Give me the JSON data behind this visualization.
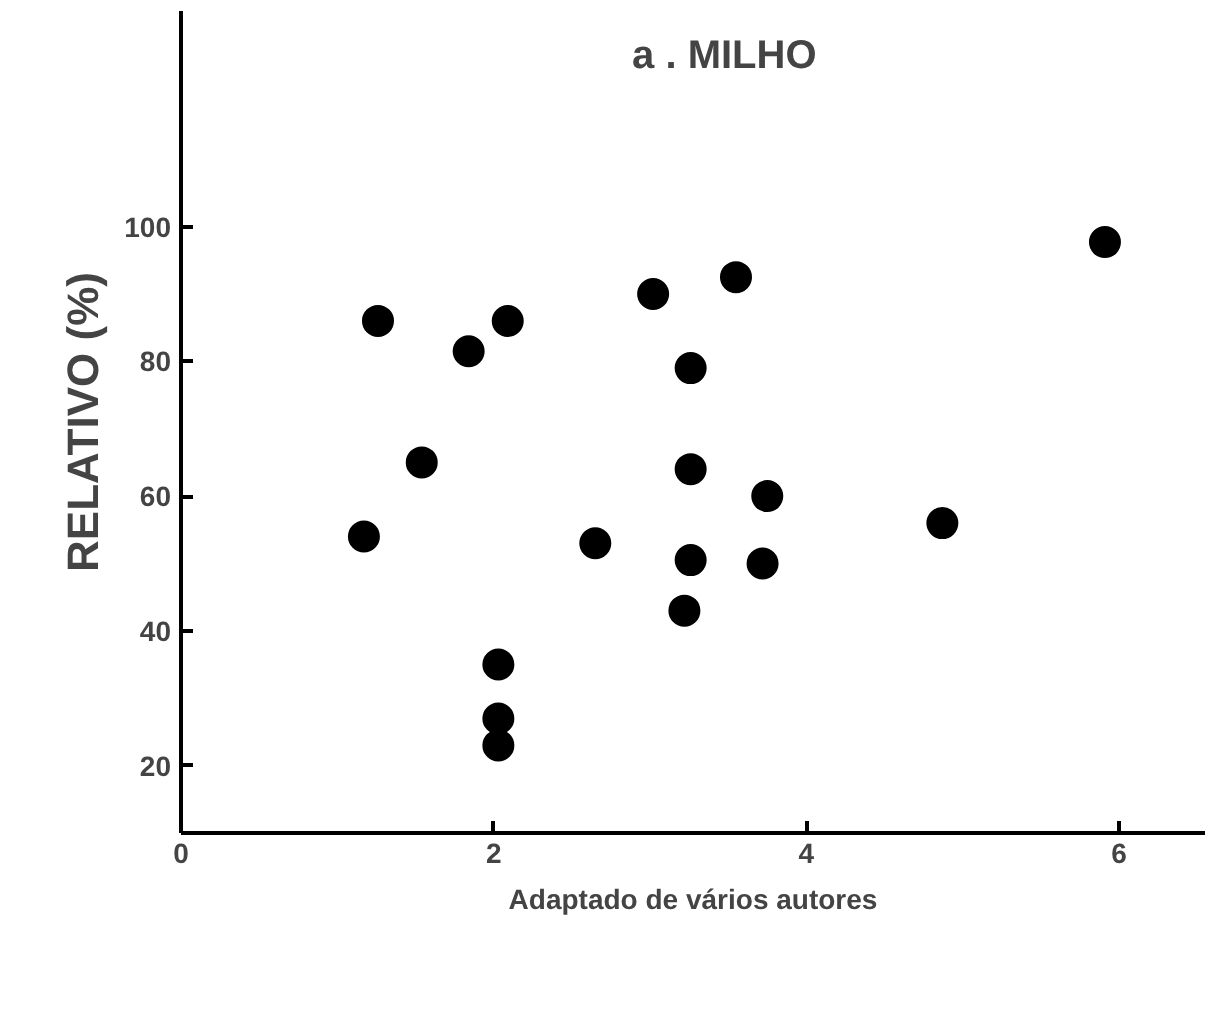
{
  "chart_data": {
    "type": "scatter",
    "title": "a . MILHO",
    "ylabel": "RELATIVO (%)",
    "annotations": [
      "Adaptado de vários autores"
    ],
    "x": [
      1.26,
      1.84,
      2.09,
      1.17,
      1.54,
      2.03,
      2.03,
      2.03,
      2.65,
      3.02,
      3.55,
      3.26,
      3.26,
      3.26,
      3.22,
      3.75,
      3.72,
      4.87,
      5.91
    ],
    "series": [
      {
        "color": "#000000",
        "values": [
          86,
          81.5,
          86,
          54,
          65,
          35,
          27,
          23,
          53,
          90,
          92.5,
          79,
          64,
          50.5,
          43,
          60,
          50,
          56,
          97.7
        ]
      }
    ],
    "xlim": [
      0,
      6.55
    ],
    "ylim": [
      10,
      132
    ],
    "xticks": [
      0,
      2,
      4,
      6
    ],
    "yticks": [
      20,
      40,
      60,
      80,
      100
    ],
    "grid": false,
    "marker": "circle"
  }
}
